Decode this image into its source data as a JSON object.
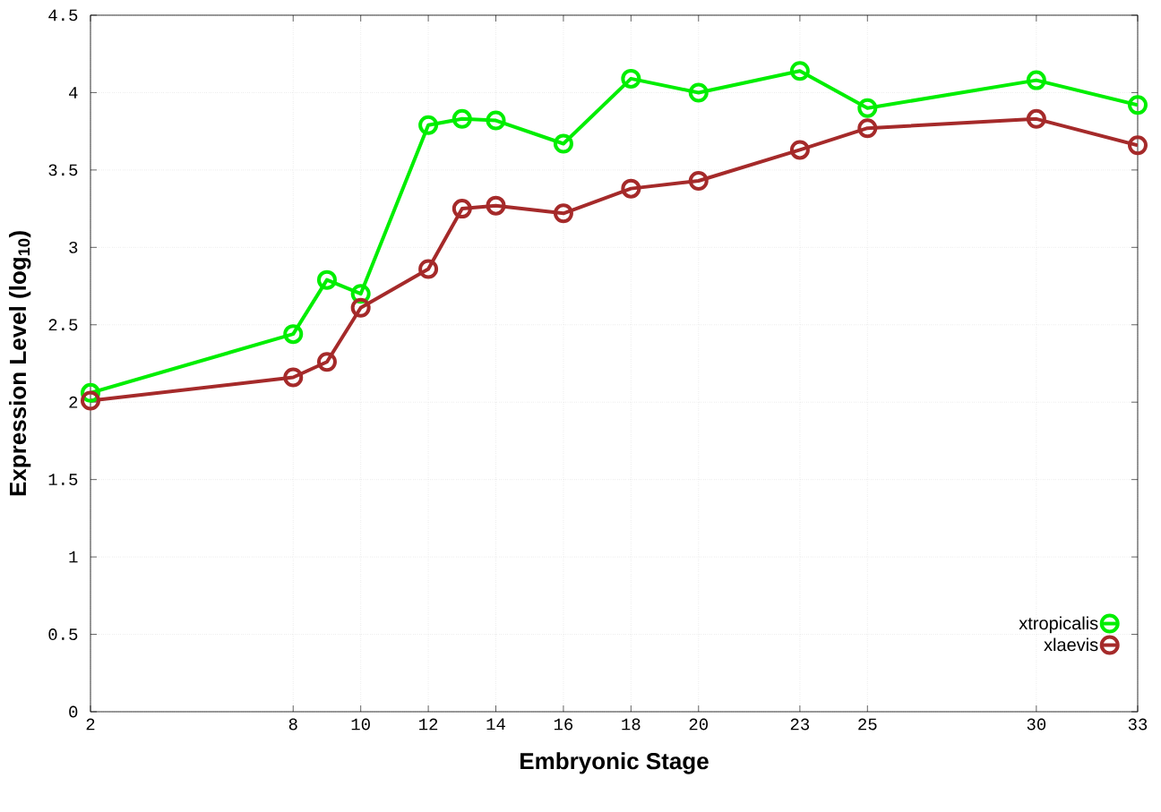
{
  "chart_data": {
    "type": "line",
    "xlabel": "Embryonic Stage",
    "ylabel": "Expression Level (log$_{10}$)",
    "x": [
      2,
      8,
      9,
      10,
      12,
      13,
      14,
      16,
      18,
      20,
      23,
      25,
      30,
      33
    ],
    "series": [
      {
        "name": "xtropicalis",
        "color": "#00ee00",
        "values": [
          2.06,
          2.44,
          2.79,
          2.7,
          3.79,
          3.83,
          3.82,
          3.67,
          4.09,
          4.0,
          4.14,
          3.9,
          4.08,
          3.92
        ]
      },
      {
        "name": "xlaevis",
        "color": "#a52a2a",
        "values": [
          2.01,
          2.16,
          2.26,
          2.61,
          2.86,
          3.25,
          3.27,
          3.22,
          3.38,
          3.43,
          3.63,
          3.77,
          3.83,
          3.66
        ]
      }
    ],
    "xlim": [
      2,
      33
    ],
    "ylim": [
      0,
      4.5
    ],
    "xticks": [
      2,
      8,
      10,
      12,
      14,
      16,
      18,
      20,
      23,
      25,
      30,
      33
    ],
    "yticks": [
      0,
      0.5,
      1,
      1.5,
      2,
      2.5,
      3,
      3.5,
      4,
      4.5
    ],
    "grid": true,
    "legend": "bottom right",
    "marker": "circle",
    "line_style": "solid"
  }
}
